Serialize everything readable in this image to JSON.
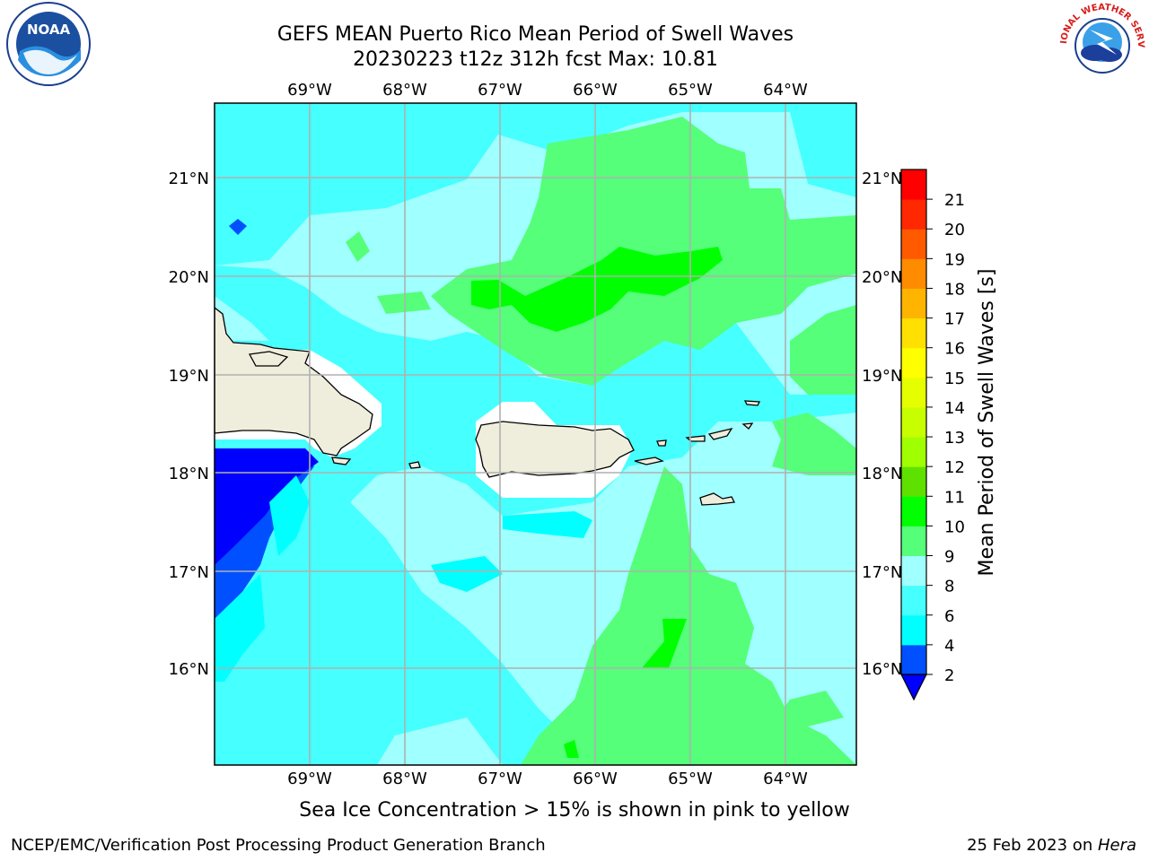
{
  "header": {
    "title_line1": "GEFS MEAN Puerto Rico Mean Period of Swell Waves",
    "title_line2": "20230223 t12z 312h fcst   Max: 10.81"
  },
  "map": {
    "lon_labels": [
      "69°W",
      "68°W",
      "67°W",
      "66°W",
      "65°W",
      "64°W"
    ],
    "lat_labels": [
      "21°N",
      "20°N",
      "19°N",
      "18°N",
      "17°N",
      "16°N"
    ]
  },
  "colorbar": {
    "label": "Mean Period of Swell Waves [s]",
    "ticks": [
      "2",
      "4",
      "6",
      "8",
      "9",
      "10",
      "11",
      "12",
      "13",
      "14",
      "15",
      "16",
      "17",
      "18",
      "19",
      "20",
      "21"
    ],
    "colors": [
      "#0050ff",
      "#00ffff",
      "#46ffff",
      "#a0ffff",
      "#55ff7a",
      "#00ff00",
      "#5fe100",
      "#a0ff00",
      "#c8ff00",
      "#e6ff00",
      "#ffff00",
      "#ffe000",
      "#ffb400",
      "#ff8c00",
      "#ff5a00",
      "#ff2800",
      "#ff0000"
    ],
    "under_color": "#0000ff"
  },
  "caption": "Sea Ice Concentration > 15% is shown in pink to yellow",
  "footer": {
    "left": "NCEP/EMC/Verification Post Processing Product Generation Branch",
    "right_date": "25 Feb 2023 on ",
    "right_machine": "Hera"
  },
  "logos": {
    "noaa_text": "NOAA",
    "nws_text": "NATIONAL WEATHER SERVICE"
  }
}
